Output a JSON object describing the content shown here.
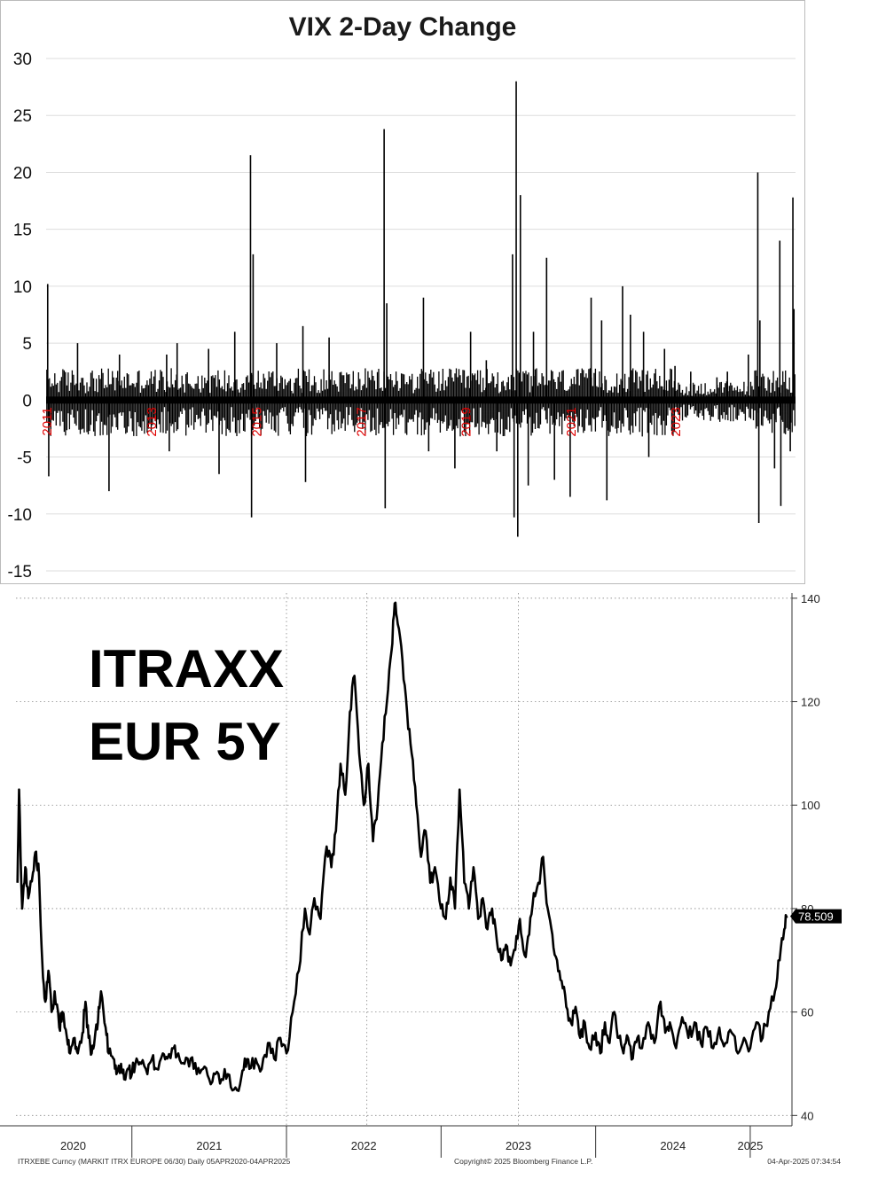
{
  "chart_data": [
    {
      "type": "bar",
      "title": "VIX 2-Day Change",
      "ylim": [
        -15,
        30
      ],
      "yticks": [
        30,
        25,
        20,
        15,
        10,
        5,
        0,
        -5,
        -10,
        -15
      ],
      "year_labels": [
        "2011",
        "2013",
        "2015",
        "2017",
        "2019",
        "2021",
        "2023"
      ],
      "xlim": [
        2011.0,
        2025.3
      ],
      "grid": true,
      "bar_color": "#000000",
      "year_label_color": "#e00000",
      "spikes": [
        {
          "x": 2011.03,
          "value": 10.2
        },
        {
          "x": 2011.05,
          "value": -6.7
        },
        {
          "x": 2011.6,
          "value": 5.0
        },
        {
          "x": 2012.2,
          "value": -8.0
        },
        {
          "x": 2012.4,
          "value": 4.0
        },
        {
          "x": 2013.3,
          "value": 4.0
        },
        {
          "x": 2013.35,
          "value": -4.5
        },
        {
          "x": 2013.5,
          "value": 5.0
        },
        {
          "x": 2014.1,
          "value": 4.5
        },
        {
          "x": 2014.3,
          "value": -6.5
        },
        {
          "x": 2014.6,
          "value": 6.0
        },
        {
          "x": 2014.9,
          "value": 21.5
        },
        {
          "x": 2014.92,
          "value": -10.3
        },
        {
          "x": 2014.95,
          "value": 12.8
        },
        {
          "x": 2015.4,
          "value": 5.0
        },
        {
          "x": 2015.9,
          "value": 6.5
        },
        {
          "x": 2015.95,
          "value": -7.2
        },
        {
          "x": 2016.4,
          "value": 5.5
        },
        {
          "x": 2017.45,
          "value": 23.8
        },
        {
          "x": 2017.47,
          "value": -9.5
        },
        {
          "x": 2017.5,
          "value": 8.5
        },
        {
          "x": 2018.2,
          "value": 9.0
        },
        {
          "x": 2018.3,
          "value": -4.5
        },
        {
          "x": 2018.8,
          "value": -6.0
        },
        {
          "x": 2019.1,
          "value": 6.0
        },
        {
          "x": 2019.4,
          "value": 3.5
        },
        {
          "x": 2019.6,
          "value": -4.5
        },
        {
          "x": 2019.9,
          "value": 12.8
        },
        {
          "x": 2019.93,
          "value": -10.3
        },
        {
          "x": 2019.97,
          "value": 28.0
        },
        {
          "x": 2020.0,
          "value": -12.0
        },
        {
          "x": 2020.05,
          "value": 18.0
        },
        {
          "x": 2020.2,
          "value": -7.5
        },
        {
          "x": 2020.3,
          "value": 6.0
        },
        {
          "x": 2020.55,
          "value": 12.5
        },
        {
          "x": 2020.7,
          "value": -7.0
        },
        {
          "x": 2021.0,
          "value": -8.5
        },
        {
          "x": 2021.4,
          "value": 9.0
        },
        {
          "x": 2021.6,
          "value": 7.0
        },
        {
          "x": 2021.7,
          "value": -8.8
        },
        {
          "x": 2022.0,
          "value": 10.0
        },
        {
          "x": 2022.15,
          "value": 7.5
        },
        {
          "x": 2022.4,
          "value": 6.0
        },
        {
          "x": 2022.5,
          "value": -5.0
        },
        {
          "x": 2022.8,
          "value": 4.5
        },
        {
          "x": 2023.0,
          "value": 3.0
        },
        {
          "x": 2023.3,
          "value": 2.5
        },
        {
          "x": 2023.8,
          "value": 2.0
        },
        {
          "x": 2024.0,
          "value": 2.5
        },
        {
          "x": 2024.4,
          "value": 4.0
        },
        {
          "x": 2024.58,
          "value": 20.0
        },
        {
          "x": 2024.6,
          "value": -10.8
        },
        {
          "x": 2024.62,
          "value": 7.0
        },
        {
          "x": 2024.9,
          "value": -6.0
        },
        {
          "x": 2025.0,
          "value": 14.0
        },
        {
          "x": 2025.02,
          "value": -9.3
        },
        {
          "x": 2025.2,
          "value": -4.5
        },
        {
          "x": 2025.25,
          "value": 17.8
        },
        {
          "x": 2025.27,
          "value": 8.0
        }
      ]
    },
    {
      "type": "line",
      "title": "ITRAXX\nEUR 5Y",
      "title_lines": [
        "ITRAXX",
        "EUR 5Y"
      ],
      "xlim": [
        2020.25,
        2025.27
      ],
      "ylim": [
        38,
        141
      ],
      "yticks": [
        140,
        120,
        100,
        80,
        60,
        40
      ],
      "xtick_labels": [
        {
          "label": "2020",
          "x": 2020.62
        },
        {
          "label": "2021",
          "x": 2021.5
        },
        {
          "label": "2022",
          "x": 2022.5
        },
        {
          "label": "2023",
          "x": 2023.5
        },
        {
          "label": "2024",
          "x": 2024.5
        },
        {
          "label": "2025",
          "x": 2025.0
        }
      ],
      "year_boundaries": [
        2021.0,
        2022.0,
        2023.0,
        2024.0,
        2025.0
      ],
      "last_value": 78.509,
      "last_value_label": "78.509",
      "footer_left": "ITRXEBE Curncy (MARKIT ITRX EUROPE 06/30) Daily 05APR2020-04APR2025",
      "footer_center": "Copyright© 2025 Bloomberg Finance L.P.",
      "footer_right": "04-Apr-2025 07:34:54",
      "line_color": "#000000",
      "points": [
        [
          2020.26,
          85
        ],
        [
          2020.27,
          103
        ],
        [
          2020.29,
          80
        ],
        [
          2020.31,
          88
        ],
        [
          2020.33,
          82
        ],
        [
          2020.36,
          87
        ],
        [
          2020.38,
          91
        ],
        [
          2020.4,
          86
        ],
        [
          2020.42,
          70
        ],
        [
          2020.44,
          62
        ],
        [
          2020.46,
          68
        ],
        [
          2020.48,
          60
        ],
        [
          2020.5,
          64
        ],
        [
          2020.53,
          57
        ],
        [
          2020.55,
          60
        ],
        [
          2020.58,
          55
        ],
        [
          2020.6,
          52
        ],
        [
          2020.63,
          55
        ],
        [
          2020.65,
          52
        ],
        [
          2020.68,
          56
        ],
        [
          2020.7,
          62
        ],
        [
          2020.72,
          55
        ],
        [
          2020.74,
          52
        ],
        [
          2020.76,
          55
        ],
        [
          2020.78,
          58
        ],
        [
          2020.8,
          64
        ],
        [
          2020.83,
          57
        ],
        [
          2020.85,
          52
        ],
        [
          2020.88,
          51
        ],
        [
          2020.9,
          48
        ],
        [
          2020.93,
          50
        ],
        [
          2020.95,
          47
        ],
        [
          2020.98,
          49
        ],
        [
          2021.0,
          48
        ],
        [
          2021.03,
          51
        ],
        [
          2021.06,
          50
        ],
        [
          2021.1,
          48
        ],
        [
          2021.13,
          51
        ],
        [
          2021.16,
          49
        ],
        [
          2021.2,
          52
        ],
        [
          2021.23,
          51
        ],
        [
          2021.27,
          53
        ],
        [
          2021.3,
          52
        ],
        [
          2021.34,
          50
        ],
        [
          2021.38,
          51
        ],
        [
          2021.42,
          48
        ],
        [
          2021.46,
          49
        ],
        [
          2021.5,
          47
        ],
        [
          2021.54,
          48
        ],
        [
          2021.58,
          47
        ],
        [
          2021.62,
          48
        ],
        [
          2021.66,
          45
        ],
        [
          2021.7,
          46
        ],
        [
          2021.73,
          51
        ],
        [
          2021.76,
          49
        ],
        [
          2021.8,
          51
        ],
        [
          2021.84,
          49
        ],
        [
          2021.88,
          54
        ],
        [
          2021.92,
          51
        ],
        [
          2021.96,
          55
        ],
        [
          2022.0,
          52
        ],
        [
          2022.04,
          60
        ],
        [
          2022.08,
          68
        ],
        [
          2022.12,
          80
        ],
        [
          2022.15,
          75
        ],
        [
          2022.18,
          82
        ],
        [
          2022.22,
          78
        ],
        [
          2022.26,
          92
        ],
        [
          2022.29,
          88
        ],
        [
          2022.32,
          95
        ],
        [
          2022.35,
          108
        ],
        [
          2022.38,
          102
        ],
        [
          2022.41,
          118
        ],
        [
          2022.44,
          125
        ],
        [
          2022.47,
          110
        ],
        [
          2022.5,
          100
        ],
        [
          2022.53,
          108
        ],
        [
          2022.56,
          93
        ],
        [
          2022.59,
          100
        ],
        [
          2022.62,
          112
        ],
        [
          2022.65,
          120
        ],
        [
          2022.68,
          130
        ],
        [
          2022.7,
          139
        ],
        [
          2022.72,
          135
        ],
        [
          2022.75,
          128
        ],
        [
          2022.78,
          118
        ],
        [
          2022.81,
          110
        ],
        [
          2022.84,
          100
        ],
        [
          2022.87,
          90
        ],
        [
          2022.9,
          95
        ],
        [
          2022.93,
          85
        ],
        [
          2022.96,
          88
        ],
        [
          2023.0,
          80
        ],
        [
          2023.03,
          78
        ],
        [
          2023.06,
          86
        ],
        [
          2023.09,
          80
        ],
        [
          2023.12,
          103
        ],
        [
          2023.15,
          85
        ],
        [
          2023.18,
          80
        ],
        [
          2023.21,
          88
        ],
        [
          2023.24,
          78
        ],
        [
          2023.27,
          82
        ],
        [
          2023.3,
          76
        ],
        [
          2023.33,
          80
        ],
        [
          2023.36,
          74
        ],
        [
          2023.39,
          70
        ],
        [
          2023.42,
          73
        ],
        [
          2023.45,
          69
        ],
        [
          2023.48,
          72
        ],
        [
          2023.51,
          78
        ],
        [
          2023.54,
          71
        ],
        [
          2023.57,
          75
        ],
        [
          2023.6,
          83
        ],
        [
          2023.63,
          85
        ],
        [
          2023.66,
          90
        ],
        [
          2023.69,
          80
        ],
        [
          2023.72,
          75
        ],
        [
          2023.75,
          70
        ],
        [
          2023.78,
          66
        ],
        [
          2023.81,
          61
        ],
        [
          2023.84,
          58
        ],
        [
          2023.87,
          61
        ],
        [
          2023.9,
          55
        ],
        [
          2023.93,
          58
        ],
        [
          2023.96,
          53
        ],
        [
          2024.0,
          56
        ],
        [
          2024.03,
          52
        ],
        [
          2024.06,
          58
        ],
        [
          2024.09,
          54
        ],
        [
          2024.12,
          60
        ],
        [
          2024.15,
          55
        ],
        [
          2024.18,
          52
        ],
        [
          2024.21,
          55
        ],
        [
          2024.24,
          51
        ],
        [
          2024.27,
          55
        ],
        [
          2024.3,
          53
        ],
        [
          2024.34,
          58
        ],
        [
          2024.38,
          54
        ],
        [
          2024.42,
          62
        ],
        [
          2024.45,
          56
        ],
        [
          2024.48,
          58
        ],
        [
          2024.52,
          53
        ],
        [
          2024.56,
          59
        ],
        [
          2024.6,
          55
        ],
        [
          2024.64,
          58
        ],
        [
          2024.68,
          54
        ],
        [
          2024.72,
          57
        ],
        [
          2024.76,
          53
        ],
        [
          2024.8,
          57
        ],
        [
          2024.84,
          54
        ],
        [
          2024.88,
          56
        ],
        [
          2024.92,
          52
        ],
        [
          2024.96,
          55
        ],
        [
          2025.0,
          53
        ],
        [
          2025.04,
          58
        ],
        [
          2025.08,
          55
        ],
        [
          2025.12,
          60
        ],
        [
          2025.16,
          64
        ],
        [
          2025.19,
          70
        ],
        [
          2025.22,
          76
        ],
        [
          2025.24,
          78.509
        ]
      ]
    }
  ]
}
